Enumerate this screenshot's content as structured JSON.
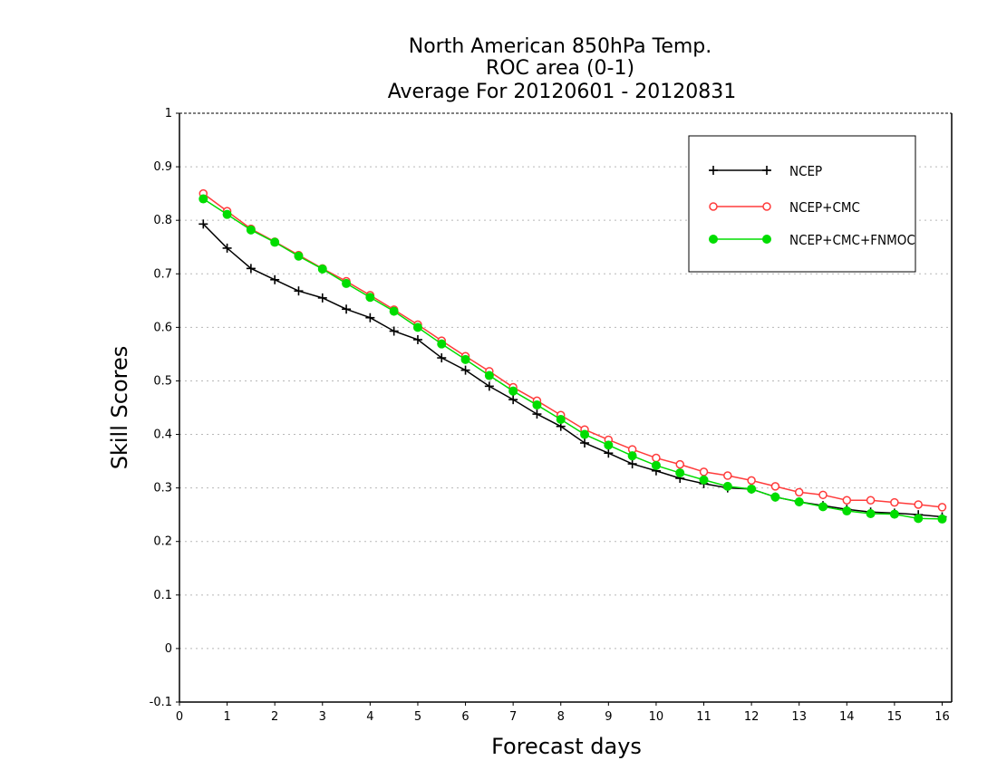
{
  "chart_data": {
    "type": "line",
    "title": [
      "North American 850hPa Temp.",
      "ROC area (0-1)",
      "Average For 20120601 - 20120831"
    ],
    "xlabel": "Forecast days",
    "ylabel": "Skill Scores",
    "xlim": [
      0,
      16.2
    ],
    "ylim": [
      -0.1,
      1
    ],
    "xticks": [
      0,
      1,
      2,
      3,
      4,
      5,
      6,
      7,
      8,
      9,
      10,
      11,
      12,
      13,
      14,
      15,
      16
    ],
    "yticks": [
      -0.1,
      0,
      0.1,
      0.2,
      0.3,
      0.4,
      0.5,
      0.6,
      0.7,
      0.8,
      0.9,
      1
    ],
    "ytick_labels": [
      "-0.1",
      "0",
      "0.1",
      "0.2",
      "0.3",
      "0.4",
      "0.5",
      "0.6",
      "0.7",
      "0.8",
      "0.9",
      "1"
    ],
    "grid": true,
    "legend_position": "top-right",
    "x": [
      0.5,
      1,
      1.5,
      2,
      2.5,
      3,
      3.5,
      4,
      4.5,
      5,
      5.5,
      6,
      6.5,
      7,
      7.5,
      8,
      8.5,
      9,
      9.5,
      10,
      10.5,
      11,
      11.5,
      12,
      12.5,
      13,
      13.5,
      14,
      14.5,
      15,
      15.5,
      16
    ],
    "series": [
      {
        "name": "NCEP",
        "color": "#000000",
        "marker": "plus",
        "values": [
          0.793,
          0.748,
          0.71,
          0.689,
          0.668,
          0.655,
          0.634,
          0.618,
          0.593,
          0.577,
          0.543,
          0.52,
          0.49,
          0.465,
          0.438,
          0.415,
          0.384,
          0.365,
          0.345,
          0.332,
          0.318,
          0.308,
          0.3,
          0.298,
          0.283,
          0.274,
          0.267,
          0.26,
          0.255,
          0.253,
          0.25,
          0.246
        ]
      },
      {
        "name": "NCEP+CMC",
        "color": "#ff3b3b",
        "marker": "open-circle",
        "values": [
          0.85,
          0.817,
          0.784,
          0.76,
          0.735,
          0.71,
          0.686,
          0.66,
          0.633,
          0.605,
          0.575,
          0.546,
          0.518,
          0.488,
          0.463,
          0.436,
          0.409,
          0.39,
          0.372,
          0.356,
          0.344,
          0.33,
          0.323,
          0.314,
          0.303,
          0.292,
          0.287,
          0.277,
          0.277,
          0.273,
          0.269,
          0.264
        ]
      },
      {
        "name": "NCEP+CMC+FNMOC",
        "color": "#00dd00",
        "marker": "filled-circle",
        "values": [
          0.84,
          0.811,
          0.782,
          0.759,
          0.733,
          0.709,
          0.682,
          0.656,
          0.63,
          0.6,
          0.569,
          0.54,
          0.51,
          0.481,
          0.455,
          0.428,
          0.4,
          0.38,
          0.36,
          0.342,
          0.328,
          0.315,
          0.303,
          0.298,
          0.283,
          0.274,
          0.265,
          0.257,
          0.252,
          0.251,
          0.243,
          0.242
        ]
      }
    ]
  }
}
